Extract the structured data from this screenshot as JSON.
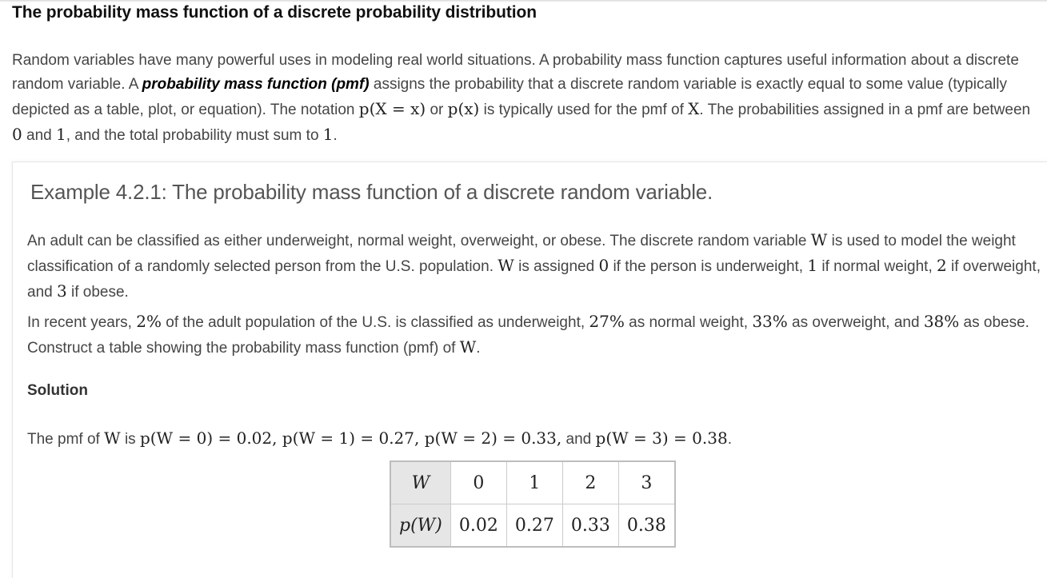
{
  "section": {
    "title": "The probability mass function of a discrete probability distribution"
  },
  "intro": {
    "s1": "Random variables have many powerful uses in modeling real world situations. A probability mass function captures useful information about a discrete random variable. A ",
    "term": "probability mass function (pmf)",
    "s2": " assigns the probability that a discrete random variable is exactly equal to some value (typically depicted as a table, plot, or equation). The notation ",
    "m1": "p(X = x)",
    "s3": " or ",
    "m2": "p(x)",
    "s4": " is typically used for the pmf of ",
    "m3": "X",
    "s5": ". The probabilities assigned in a pmf are between ",
    "m4": "0",
    "s6": " and ",
    "m5": "1",
    "s7": ", and the total probability must sum to ",
    "m6": "1",
    "s8": "."
  },
  "example": {
    "title": "Example 4.2.1: The probability mass function of a discrete random variable.",
    "p1": {
      "s1": "An adult can be classified as either underweight, normal weight, overweight, or obese. The discrete random variable ",
      "m1": "W",
      "s2": " is used to model the weight classification of a randomly selected person from the U.S. population. ",
      "m2": "W",
      "s3": " is assigned ",
      "m3": "0",
      "s4": " if the person is underweight, ",
      "m4": "1",
      "s5": " if normal weight, ",
      "m5": "2",
      "s6": " if overweight, and ",
      "m6": "3",
      "s7": " if obese."
    },
    "p2": {
      "s1": "In recent years, ",
      "m1": "2%",
      "s2": " of the adult population of the U.S. is classified as underweight, ",
      "m2": "27%",
      "s3": " as normal weight, ",
      "m3": "33%",
      "s4": " as overweight, and ",
      "m4": "38%",
      "s5": " as obese. Construct a table showing the probability mass function (pmf) of ",
      "m5": "W",
      "s6": "."
    },
    "solution_label": "Solution",
    "p3": {
      "s1": "The pmf of ",
      "m1": "W",
      "s2": " is ",
      "m2": "p(W = 0) = 0.02, p(W = 1) = 0.27, p(W = 2) = 0.33,",
      "s3": " and ",
      "m3": "p(W = 3) = 0.38",
      "s4": "."
    },
    "table": {
      "row1": [
        "W",
        "0",
        "1",
        "2",
        "3"
      ],
      "row2": [
        "p(W)",
        "0.02",
        "0.27",
        "0.33",
        "0.38"
      ]
    }
  }
}
